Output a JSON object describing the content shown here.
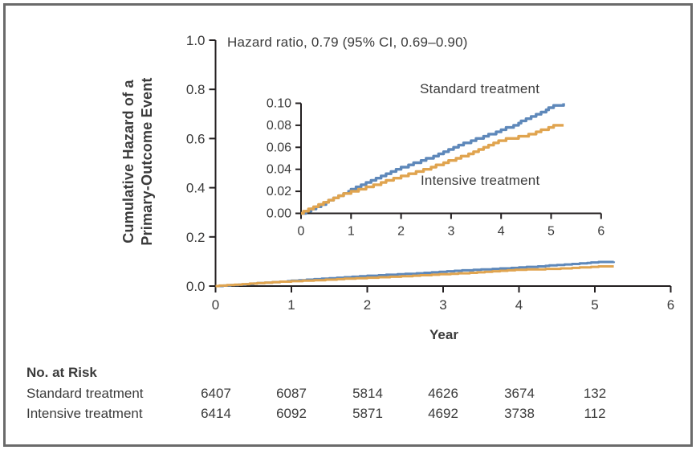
{
  "figure": {
    "border_color": "#6a6a6a",
    "axis_color": "#231f20",
    "text_color": "#3b3b3b"
  },
  "chart_data": {
    "type": "line",
    "title": "Cumulative Hazard of a Primary-Outcome Event",
    "annotation": "Hazard ratio, 0.79 (95% CI, 0.69–0.90)",
    "xlabel": "Year",
    "ylabel_lines": [
      "Cumulative Hazard of a",
      "Primary-Outcome Event"
    ],
    "main_axis": {
      "xlim": [
        0,
        6
      ],
      "ylim": [
        0,
        1.0
      ],
      "grid": false,
      "xticks": [
        "0",
        "1",
        "2",
        "3",
        "4",
        "5",
        "6"
      ],
      "yticks": [
        "0.0",
        "0.2",
        "0.4",
        "0.6",
        "0.8",
        "1.0"
      ]
    },
    "inset_axis": {
      "xlim": [
        0,
        6
      ],
      "ylim": [
        0,
        0.1
      ],
      "grid": false,
      "xticks": [
        "0",
        "1",
        "2",
        "3",
        "4",
        "5",
        "6"
      ],
      "yticks": [
        "0.00",
        "0.02",
        "0.04",
        "0.06",
        "0.08",
        "0.10"
      ]
    },
    "legend_position": "inline-labels",
    "series": [
      {
        "name": "Standard treatment",
        "color": "#5E88BA",
        "points": [
          [
            0,
            0
          ],
          [
            0.25,
            0.0045
          ],
          [
            0.5,
            0.01
          ],
          [
            0.75,
            0.0155
          ],
          [
            1,
            0.021
          ],
          [
            1.25,
            0.0265
          ],
          [
            1.5,
            0.0315
          ],
          [
            2,
            0.041
          ],
          [
            2.5,
            0.049
          ],
          [
            3,
            0.058
          ],
          [
            3.25,
            0.0635
          ],
          [
            3.5,
            0.067
          ],
          [
            4,
            0.0755
          ],
          [
            4.25,
            0.0795
          ],
          [
            4.5,
            0.0855
          ],
          [
            4.75,
            0.0905
          ],
          [
            5,
            0.0965
          ],
          [
            5.1,
            0.0985
          ],
          [
            5.25,
            0.099
          ]
        ]
      },
      {
        "name": "Intensive treatment",
        "color": "#E0A44F",
        "points": [
          [
            0,
            0
          ],
          [
            0.25,
            0.005
          ],
          [
            0.5,
            0.0105
          ],
          [
            0.75,
            0.016
          ],
          [
            1,
            0.0195
          ],
          [
            1.5,
            0.026
          ],
          [
            2,
            0.0335
          ],
          [
            2.5,
            0.04
          ],
          [
            3,
            0.048
          ],
          [
            3.5,
            0.056
          ],
          [
            3.9,
            0.0645
          ],
          [
            4.1,
            0.067
          ],
          [
            4.5,
            0.0705
          ],
          [
            4.75,
            0.0745
          ],
          [
            5,
            0.0785
          ],
          [
            5.1,
            0.08
          ],
          [
            5.25,
            0.0805
          ]
        ]
      }
    ]
  },
  "risk_table": {
    "title": "No. at Risk",
    "rows": [
      {
        "label": "Standard treatment",
        "values": [
          "6407",
          "6087",
          "5814",
          "4626",
          "3674",
          "132"
        ]
      },
      {
        "label": "Intensive treatment",
        "values": [
          "6414",
          "6092",
          "5871",
          "4692",
          "3738",
          "112"
        ]
      }
    ]
  }
}
